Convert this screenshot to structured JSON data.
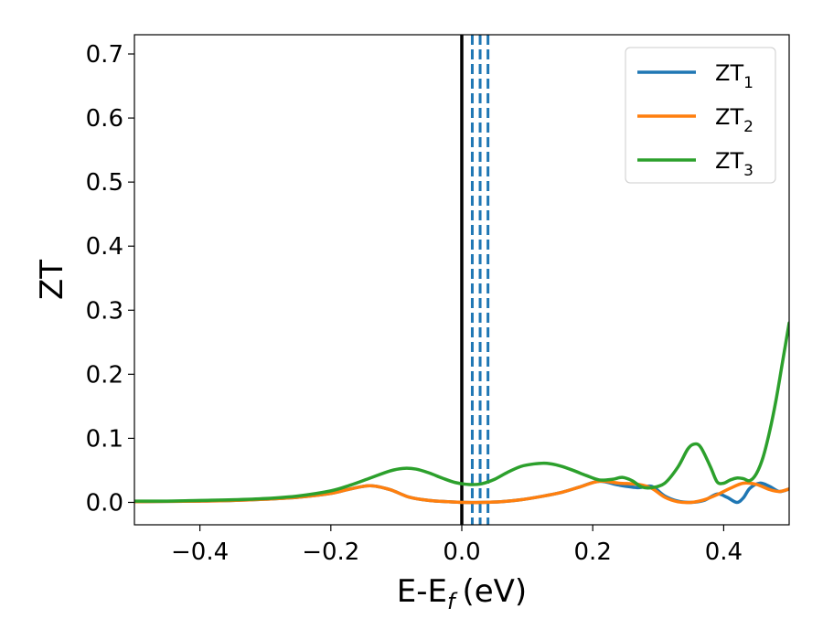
{
  "chart_data": {
    "type": "line",
    "xlabel": "E-E",
    "xlabel_sub": "f",
    "xlabel_unit": "(eV)",
    "ylabel": "ZT",
    "xlim": [
      -0.5,
      0.5
    ],
    "ylim": [
      -0.035,
      0.73
    ],
    "xticks": [
      -0.4,
      -0.2,
      0.0,
      0.2,
      0.4
    ],
    "xtick_labels": [
      "−0.4",
      "−0.2",
      "0.0",
      "0.2",
      "0.4"
    ],
    "yticks": [
      0.0,
      0.1,
      0.2,
      0.3,
      0.4,
      0.5,
      0.6,
      0.7
    ],
    "ytick_labels": [
      "0.0",
      "0.1",
      "0.2",
      "0.3",
      "0.4",
      "0.5",
      "0.6",
      "0.7"
    ],
    "grid": false,
    "legend_position": "top-right",
    "vertical_lines": [
      {
        "x": 0.0,
        "color": "#000000",
        "style": "solid"
      },
      {
        "x": 0.016,
        "color": "#1f77b4",
        "style": "dashed"
      },
      {
        "x": 0.028,
        "color": "#1f77b4",
        "style": "dashed"
      },
      {
        "x": 0.04,
        "color": "#1f77b4",
        "style": "dashed"
      }
    ],
    "series": [
      {
        "name": "ZT",
        "name_sub": "1",
        "color": "#1f77b4",
        "x": [
          -0.5,
          -0.45,
          -0.4,
          -0.35,
          -0.3,
          -0.25,
          -0.2,
          -0.17,
          -0.14,
          -0.11,
          -0.08,
          -0.05,
          -0.02,
          0.0,
          0.03,
          0.06,
          0.09,
          0.12,
          0.15,
          0.18,
          0.21,
          0.24,
          0.27,
          0.29,
          0.31,
          0.33,
          0.35,
          0.37,
          0.39,
          0.405,
          0.42,
          0.43,
          0.44,
          0.455,
          0.47,
          0.485,
          0.5
        ],
        "y": [
          0.001,
          0.0015,
          0.002,
          0.003,
          0.005,
          0.008,
          0.014,
          0.021,
          0.026,
          0.02,
          0.008,
          0.003,
          0.001,
          0.0,
          0.0,
          0.001,
          0.004,
          0.009,
          0.015,
          0.024,
          0.033,
          0.027,
          0.023,
          0.025,
          0.01,
          0.002,
          0.0,
          0.003,
          0.013,
          0.008,
          0.0,
          0.007,
          0.022,
          0.03,
          0.025,
          0.017,
          0.021
        ]
      },
      {
        "name": "ZT",
        "name_sub": "2",
        "color": "#ff7f0e",
        "x": [
          -0.5,
          -0.45,
          -0.4,
          -0.35,
          -0.3,
          -0.25,
          -0.2,
          -0.17,
          -0.14,
          -0.11,
          -0.08,
          -0.05,
          -0.02,
          0.0,
          0.03,
          0.06,
          0.09,
          0.12,
          0.15,
          0.18,
          0.21,
          0.24,
          0.27,
          0.29,
          0.31,
          0.33,
          0.35,
          0.37,
          0.39,
          0.41,
          0.43,
          0.45,
          0.47,
          0.485,
          0.5
        ],
        "y": [
          0.001,
          0.0015,
          0.002,
          0.003,
          0.005,
          0.008,
          0.014,
          0.021,
          0.026,
          0.02,
          0.008,
          0.003,
          0.001,
          0.0,
          0.0,
          0.001,
          0.004,
          0.009,
          0.015,
          0.024,
          0.033,
          0.03,
          0.028,
          0.022,
          0.008,
          0.001,
          0.0,
          0.004,
          0.012,
          0.022,
          0.03,
          0.028,
          0.02,
          0.017,
          0.021
        ]
      },
      {
        "name": "ZT",
        "name_sub": "3",
        "color": "#2ca02c",
        "x": [
          -0.5,
          -0.45,
          -0.4,
          -0.35,
          -0.3,
          -0.25,
          -0.2,
          -0.17,
          -0.14,
          -0.11,
          -0.09,
          -0.07,
          -0.05,
          -0.03,
          -0.01,
          0.01,
          0.03,
          0.05,
          0.07,
          0.09,
          0.11,
          0.13,
          0.15,
          0.17,
          0.19,
          0.21,
          0.23,
          0.245,
          0.26,
          0.275,
          0.29,
          0.31,
          0.33,
          0.345,
          0.355,
          0.365,
          0.38,
          0.39,
          0.4,
          0.41,
          0.42,
          0.43,
          0.44,
          0.45,
          0.46,
          0.47,
          0.48,
          0.49,
          0.5
        ],
        "y": [
          0.002,
          0.002,
          0.003,
          0.004,
          0.006,
          0.01,
          0.018,
          0.027,
          0.038,
          0.049,
          0.053,
          0.052,
          0.046,
          0.038,
          0.031,
          0.028,
          0.029,
          0.036,
          0.047,
          0.056,
          0.06,
          0.061,
          0.057,
          0.05,
          0.042,
          0.035,
          0.036,
          0.039,
          0.034,
          0.024,
          0.023,
          0.03,
          0.055,
          0.083,
          0.091,
          0.086,
          0.055,
          0.032,
          0.03,
          0.035,
          0.038,
          0.037,
          0.034,
          0.045,
          0.07,
          0.11,
          0.16,
          0.22,
          0.28
        ]
      }
    ]
  }
}
